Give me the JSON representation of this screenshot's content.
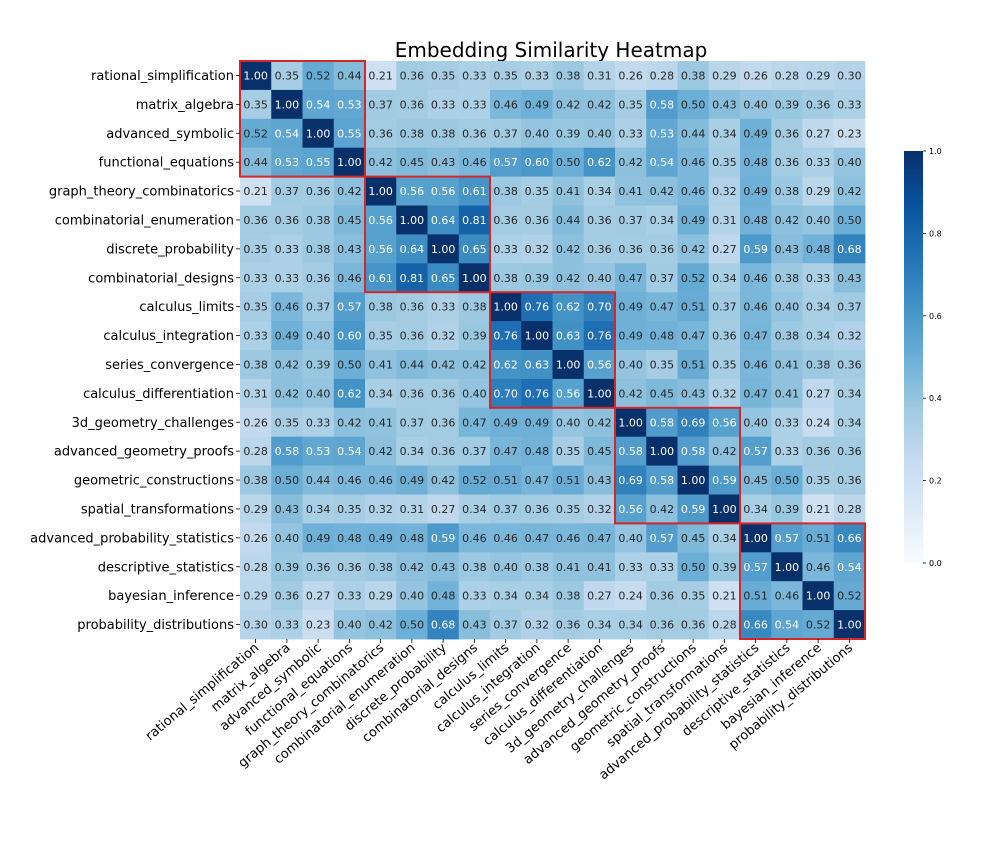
{
  "chart_data": {
    "type": "heatmap",
    "title": "Embedding Similarity Heatmap",
    "labels": [
      "rational_simplification",
      "matrix_algebra",
      "advanced_symbolic",
      "functional_equations",
      "graph_theory_combinatorics",
      "combinatorial_enumeration",
      "discrete_probability",
      "combinatorial_designs",
      "calculus_limits",
      "calculus_integration",
      "series_convergence",
      "calculus_differentiation",
      "3d_geometry_challenges",
      "advanced_geometry_proofs",
      "geometric_constructions",
      "spatial_transformations",
      "advanced_probability_statistics",
      "descriptive_statistics",
      "bayesian_inference",
      "probability_distributions"
    ],
    "matrix": [
      [
        1.0,
        0.35,
        0.52,
        0.44,
        0.21,
        0.36,
        0.35,
        0.33,
        0.35,
        0.33,
        0.38,
        0.31,
        0.26,
        0.28,
        0.38,
        0.29,
        0.26,
        0.28,
        0.29,
        0.3
      ],
      [
        0.35,
        1.0,
        0.54,
        0.53,
        0.37,
        0.36,
        0.33,
        0.33,
        0.46,
        0.49,
        0.42,
        0.42,
        0.35,
        0.58,
        0.5,
        0.43,
        0.4,
        0.39,
        0.36,
        0.33
      ],
      [
        0.52,
        0.54,
        1.0,
        0.55,
        0.36,
        0.38,
        0.38,
        0.36,
        0.37,
        0.4,
        0.39,
        0.4,
        0.33,
        0.53,
        0.44,
        0.34,
        0.49,
        0.36,
        0.27,
        0.23
      ],
      [
        0.44,
        0.53,
        0.55,
        1.0,
        0.42,
        0.45,
        0.43,
        0.46,
        0.57,
        0.6,
        0.5,
        0.62,
        0.42,
        0.54,
        0.46,
        0.35,
        0.48,
        0.36,
        0.33,
        0.4
      ],
      [
        0.21,
        0.37,
        0.36,
        0.42,
        1.0,
        0.56,
        0.56,
        0.61,
        0.38,
        0.35,
        0.41,
        0.34,
        0.41,
        0.42,
        0.46,
        0.32,
        0.49,
        0.38,
        0.29,
        0.42
      ],
      [
        0.36,
        0.36,
        0.38,
        0.45,
        0.56,
        1.0,
        0.64,
        0.81,
        0.36,
        0.36,
        0.44,
        0.36,
        0.37,
        0.34,
        0.49,
        0.31,
        0.48,
        0.42,
        0.4,
        0.5
      ],
      [
        0.35,
        0.33,
        0.38,
        0.43,
        0.56,
        0.64,
        1.0,
        0.65,
        0.33,
        0.32,
        0.42,
        0.36,
        0.36,
        0.36,
        0.42,
        0.27,
        0.59,
        0.43,
        0.48,
        0.68
      ],
      [
        0.33,
        0.33,
        0.36,
        0.46,
        0.61,
        0.81,
        0.65,
        1.0,
        0.38,
        0.39,
        0.42,
        0.4,
        0.47,
        0.37,
        0.52,
        0.34,
        0.46,
        0.38,
        0.33,
        0.43
      ],
      [
        0.35,
        0.46,
        0.37,
        0.57,
        0.38,
        0.36,
        0.33,
        0.38,
        1.0,
        0.76,
        0.62,
        0.7,
        0.49,
        0.47,
        0.51,
        0.37,
        0.46,
        0.4,
        0.34,
        0.37
      ],
      [
        0.33,
        0.49,
        0.4,
        0.6,
        0.35,
        0.36,
        0.32,
        0.39,
        0.76,
        1.0,
        0.63,
        0.76,
        0.49,
        0.48,
        0.47,
        0.36,
        0.47,
        0.38,
        0.34,
        0.32
      ],
      [
        0.38,
        0.42,
        0.39,
        0.5,
        0.41,
        0.44,
        0.42,
        0.42,
        0.62,
        0.63,
        1.0,
        0.56,
        0.4,
        0.35,
        0.51,
        0.35,
        0.46,
        0.41,
        0.38,
        0.36
      ],
      [
        0.31,
        0.42,
        0.4,
        0.62,
        0.34,
        0.36,
        0.36,
        0.4,
        0.7,
        0.76,
        0.56,
        1.0,
        0.42,
        0.45,
        0.43,
        0.32,
        0.47,
        0.41,
        0.27,
        0.34
      ],
      [
        0.26,
        0.35,
        0.33,
        0.42,
        0.41,
        0.37,
        0.36,
        0.47,
        0.49,
        0.49,
        0.4,
        0.42,
        1.0,
        0.58,
        0.69,
        0.56,
        0.4,
        0.33,
        0.24,
        0.34
      ],
      [
        0.28,
        0.58,
        0.53,
        0.54,
        0.42,
        0.34,
        0.36,
        0.37,
        0.47,
        0.48,
        0.35,
        0.45,
        0.58,
        1.0,
        0.58,
        0.42,
        0.57,
        0.33,
        0.36,
        0.36
      ],
      [
        0.38,
        0.5,
        0.44,
        0.46,
        0.46,
        0.49,
        0.42,
        0.52,
        0.51,
        0.47,
        0.51,
        0.43,
        0.69,
        0.58,
        1.0,
        0.59,
        0.45,
        0.5,
        0.35,
        0.36
      ],
      [
        0.29,
        0.43,
        0.34,
        0.35,
        0.32,
        0.31,
        0.27,
        0.34,
        0.37,
        0.36,
        0.35,
        0.32,
        0.56,
        0.42,
        0.59,
        1.0,
        0.34,
        0.39,
        0.21,
        0.28
      ],
      [
        0.26,
        0.4,
        0.49,
        0.48,
        0.49,
        0.48,
        0.59,
        0.46,
        0.46,
        0.47,
        0.46,
        0.47,
        0.4,
        0.57,
        0.45,
        0.34,
        1.0,
        0.57,
        0.51,
        0.66
      ],
      [
        0.28,
        0.39,
        0.36,
        0.36,
        0.38,
        0.42,
        0.43,
        0.38,
        0.4,
        0.38,
        0.41,
        0.41,
        0.33,
        0.33,
        0.5,
        0.39,
        0.57,
        1.0,
        0.46,
        0.54
      ],
      [
        0.29,
        0.36,
        0.27,
        0.33,
        0.29,
        0.4,
        0.48,
        0.33,
        0.34,
        0.34,
        0.38,
        0.27,
        0.24,
        0.36,
        0.35,
        0.21,
        0.51,
        0.46,
        1.0,
        0.52
      ],
      [
        0.3,
        0.33,
        0.23,
        0.4,
        0.42,
        0.5,
        0.68,
        0.43,
        0.37,
        0.32,
        0.36,
        0.34,
        0.34,
        0.36,
        0.36,
        0.28,
        0.66,
        0.54,
        0.52,
        1.0
      ]
    ],
    "clusters": [
      [
        0,
        3
      ],
      [
        4,
        7
      ],
      [
        8,
        11
      ],
      [
        12,
        15
      ],
      [
        16,
        19
      ]
    ],
    "colormap": "Blues",
    "vmin": 0.0,
    "vmax": 1.0,
    "colorbar_ticks": [
      0.0,
      0.2,
      0.4,
      0.6,
      0.8,
      1.0
    ],
    "colorbar_tick_labels": [
      "0.0",
      "0.2",
      "0.4",
      "0.6",
      "0.8",
      "1.0"
    ],
    "cluster_border_color": "#d62728",
    "legend_position": "right"
  }
}
